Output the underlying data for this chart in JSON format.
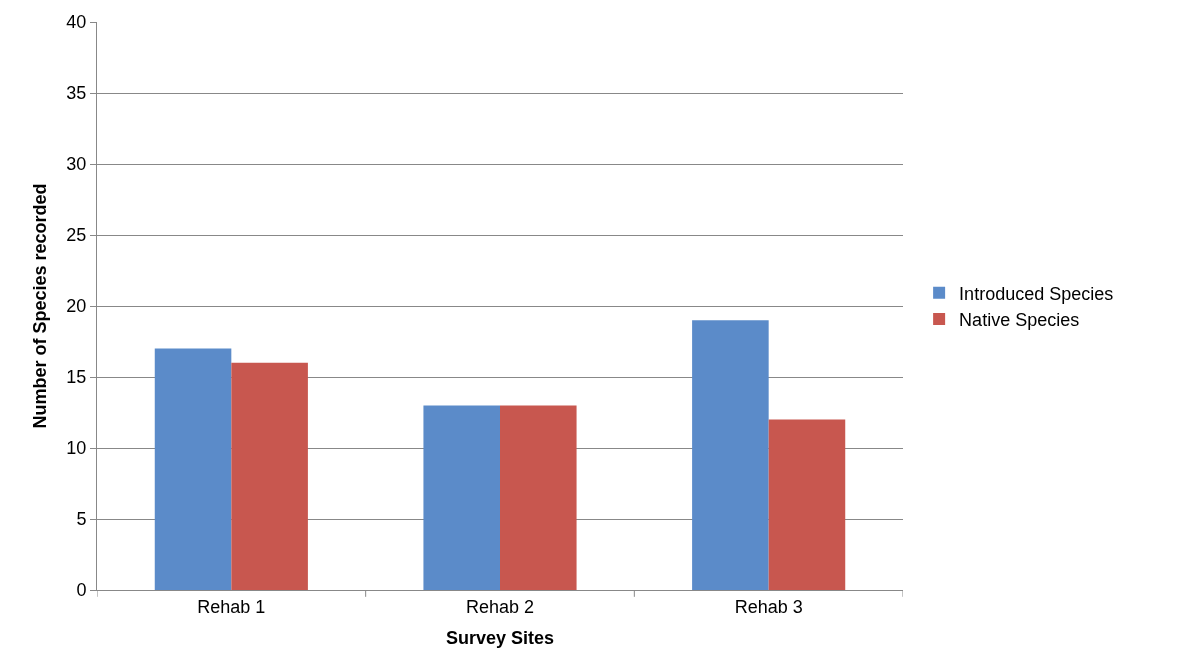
{
  "chart_data": {
    "type": "bar",
    "xlabel": "Survey Sites",
    "ylabel": "Number of Species recorded",
    "categories": [
      "Rehab 1",
      "Rehab 2",
      "Rehab 3"
    ],
    "series": [
      {
        "name": "Introduced Species",
        "color": "#5b8bc9",
        "values": [
          17,
          13,
          19
        ]
      },
      {
        "name": "Native Species",
        "color": "#c8574f",
        "values": [
          16,
          13,
          12
        ]
      }
    ],
    "ylim": [
      0,
      40
    ],
    "yticks": [
      0,
      5,
      10,
      15,
      20,
      25,
      30,
      35,
      40
    ],
    "grid": "y",
    "legend": "right"
  }
}
